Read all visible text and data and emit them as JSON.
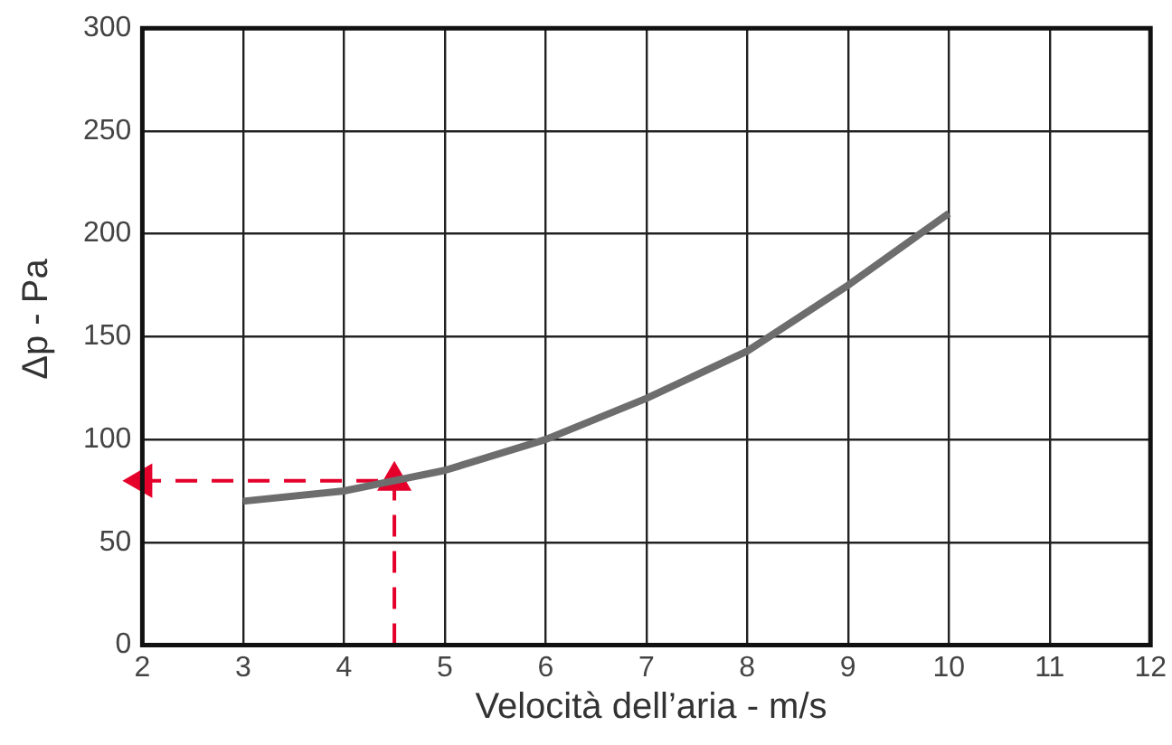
{
  "chart_data": {
    "type": "line",
    "xlabel": "Velocità dell’aria - m/s",
    "ylabel": "Δp - Pa",
    "xlim": [
      2,
      12
    ],
    "xticks": [
      2,
      3,
      4,
      5,
      6,
      7,
      8,
      9,
      10,
      11,
      12
    ],
    "ylim": [
      0,
      300
    ],
    "yticks": [
      0,
      50,
      100,
      150,
      200,
      250,
      300
    ],
    "grid": true,
    "legend": false,
    "marker": "none",
    "series": [
      {
        "color": "#6d6d6d",
        "x": [
          3,
          4,
          4.5,
          5,
          6,
          7,
          8,
          9,
          10
        ],
        "values": [
          70,
          75,
          80,
          85,
          100,
          120,
          143,
          175,
          210
        ],
        "line_style": "solid"
      },
      {
        "color": "#e4002b",
        "x": [
          4.5,
          4.5,
          2
        ],
        "values": [
          0,
          80,
          80
        ],
        "line_style": "dashed",
        "marker": "triangle"
      }
    ]
  }
}
